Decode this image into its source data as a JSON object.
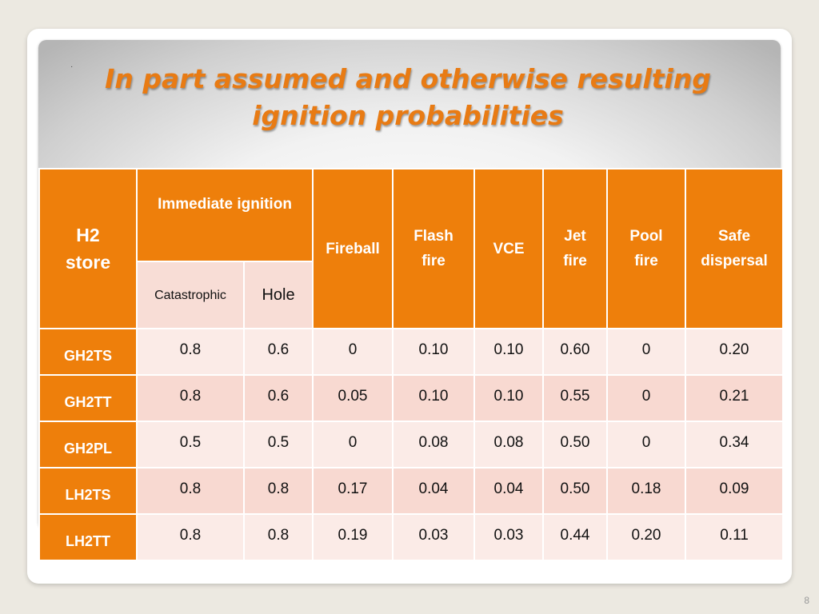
{
  "slide": {
    "bullet": "·",
    "title_line1": "In part assumed and otherwise resulting",
    "title_line2": "ignition probabilities",
    "page_number": "8"
  },
  "table": {
    "corner_line1": "H2",
    "corner_line2": "store",
    "immediate_header": "Immediate ignition",
    "sub_catastrophic": "Catastrophic",
    "sub_hole": "Hole",
    "columns": [
      {
        "line1": "Fireball",
        "line2": ""
      },
      {
        "line1": "Flash",
        "line2": "fire"
      },
      {
        "line1": "VCE",
        "line2": ""
      },
      {
        "line1": "Jet",
        "line2": "fire"
      },
      {
        "line1": "Pool",
        "line2": "fire"
      },
      {
        "line1": "Safe",
        "line2": "dispersal"
      }
    ],
    "rows": [
      {
        "label": "GH2TS",
        "values": [
          "0.8",
          "0.6",
          "0",
          "0.10",
          "0.10",
          "0.60",
          "0",
          "0.20"
        ]
      },
      {
        "label": "GH2TT",
        "values": [
          "0.8",
          "0.6",
          "0.05",
          "0.10",
          "0.10",
          "0.55",
          "0",
          "0.21"
        ]
      },
      {
        "label": "GH2PL",
        "values": [
          "0.5",
          "0.5",
          "0",
          "0.08",
          "0.08",
          "0.50",
          "0",
          "0.34"
        ]
      },
      {
        "label": "LH2TS",
        "values": [
          "0.8",
          "0.8",
          "0.17",
          "0.04",
          "0.04",
          "0.50",
          "0.18",
          "0.09"
        ]
      },
      {
        "label": "LH2TT",
        "values": [
          "0.8",
          "0.8",
          "0.19",
          "0.03",
          "0.03",
          "0.44",
          "0.20",
          "0.11"
        ]
      }
    ]
  },
  "colors": {
    "accent": "#ee7f0b",
    "title": "#e87b14",
    "row_light": "#fbebe7",
    "row_dark": "#f8d9d1"
  }
}
